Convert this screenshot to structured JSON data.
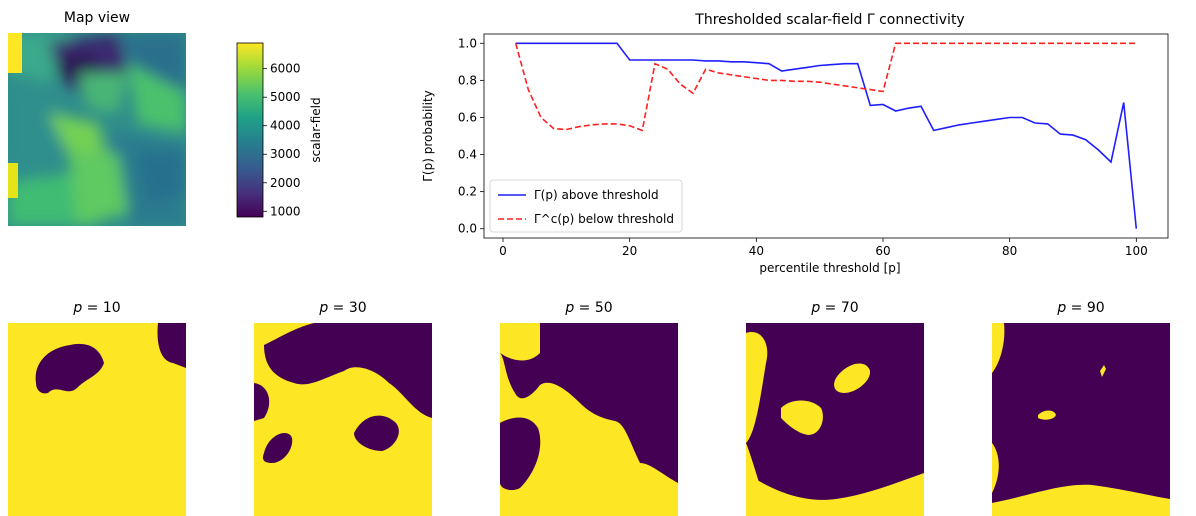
{
  "map_view": {
    "title": "Map view",
    "colorbar": {
      "label": "scalar-field",
      "ticks": [
        1000,
        2000,
        3000,
        4000,
        5000,
        6000
      ],
      "range": [
        800,
        6900
      ],
      "colormap": "viridis"
    }
  },
  "chart_data": {
    "type": "line",
    "title": "Thresholded scalar-field Γ connectivity",
    "xlabel": "percentile threshold [p]",
    "ylabel": "Γ(p) probability",
    "xlim": [
      -3,
      105
    ],
    "ylim": [
      -0.05,
      1.05
    ],
    "xticks": [
      0,
      20,
      40,
      60,
      80,
      100
    ],
    "yticks": [
      0.0,
      0.2,
      0.4,
      0.6,
      0.8,
      1.0
    ],
    "legend_position": "lower-left",
    "series": [
      {
        "name": "Γ(p) above threshold",
        "color": "#1f1fff",
        "style": "solid",
        "x": [
          2,
          4,
          6,
          8,
          10,
          12,
          14,
          16,
          18,
          20,
          22,
          24,
          26,
          28,
          30,
          32,
          34,
          36,
          38,
          40,
          42,
          44,
          46,
          48,
          50,
          52,
          54,
          56,
          58,
          60,
          62,
          64,
          66,
          68,
          70,
          72,
          74,
          76,
          78,
          80,
          82,
          84,
          86,
          88,
          90,
          92,
          94,
          96,
          98,
          100
        ],
        "y": [
          1.0,
          1.0,
          1.0,
          1.0,
          1.0,
          1.0,
          1.0,
          1.0,
          1.0,
          0.91,
          0.91,
          0.91,
          0.91,
          0.91,
          0.91,
          0.905,
          0.905,
          0.9,
          0.9,
          0.895,
          0.89,
          0.85,
          0.86,
          0.87,
          0.88,
          0.885,
          0.89,
          0.89,
          0.665,
          0.67,
          0.635,
          0.65,
          0.66,
          0.53,
          0.545,
          0.56,
          0.57,
          0.58,
          0.59,
          0.6,
          0.6,
          0.57,
          0.565,
          0.51,
          0.505,
          0.48,
          0.425,
          0.36,
          0.68,
          0.0
        ]
      },
      {
        "name": "Γ^c(p) below threshold",
        "color": "#ff2020",
        "style": "dashed",
        "x": [
          2,
          4,
          6,
          8,
          10,
          12,
          14,
          16,
          18,
          20,
          22,
          24,
          26,
          28,
          30,
          32,
          34,
          36,
          38,
          40,
          42,
          44,
          46,
          48,
          50,
          52,
          54,
          56,
          58,
          60,
          62,
          64,
          66,
          68,
          70,
          72,
          74,
          76,
          78,
          80,
          82,
          84,
          86,
          88,
          90,
          92,
          94,
          96,
          98,
          100
        ],
        "y": [
          1.0,
          0.75,
          0.6,
          0.54,
          0.535,
          0.55,
          0.56,
          0.565,
          0.565,
          0.555,
          0.53,
          0.89,
          0.86,
          0.78,
          0.73,
          0.86,
          0.84,
          0.83,
          0.82,
          0.81,
          0.8,
          0.8,
          0.795,
          0.795,
          0.79,
          0.78,
          0.77,
          0.76,
          0.75,
          0.74,
          1.0,
          1.0,
          1.0,
          1.0,
          1.0,
          1.0,
          1.0,
          1.0,
          1.0,
          1.0,
          1.0,
          1.0,
          1.0,
          1.0,
          1.0,
          1.0,
          1.0,
          1.0,
          1.0,
          1.0
        ]
      }
    ]
  },
  "threshold_maps": [
    {
      "title_var": "p",
      "title_eq": " = ",
      "value": "10"
    },
    {
      "title_var": "p",
      "title_eq": " = ",
      "value": "30"
    },
    {
      "title_var": "p",
      "title_eq": " = ",
      "value": "50"
    },
    {
      "title_var": "p",
      "title_eq": " = ",
      "value": "70"
    },
    {
      "title_var": "p",
      "title_eq": " = ",
      "value": "90"
    }
  ],
  "colors": {
    "binary_high": "#fde725",
    "binary_low": "#440154"
  }
}
